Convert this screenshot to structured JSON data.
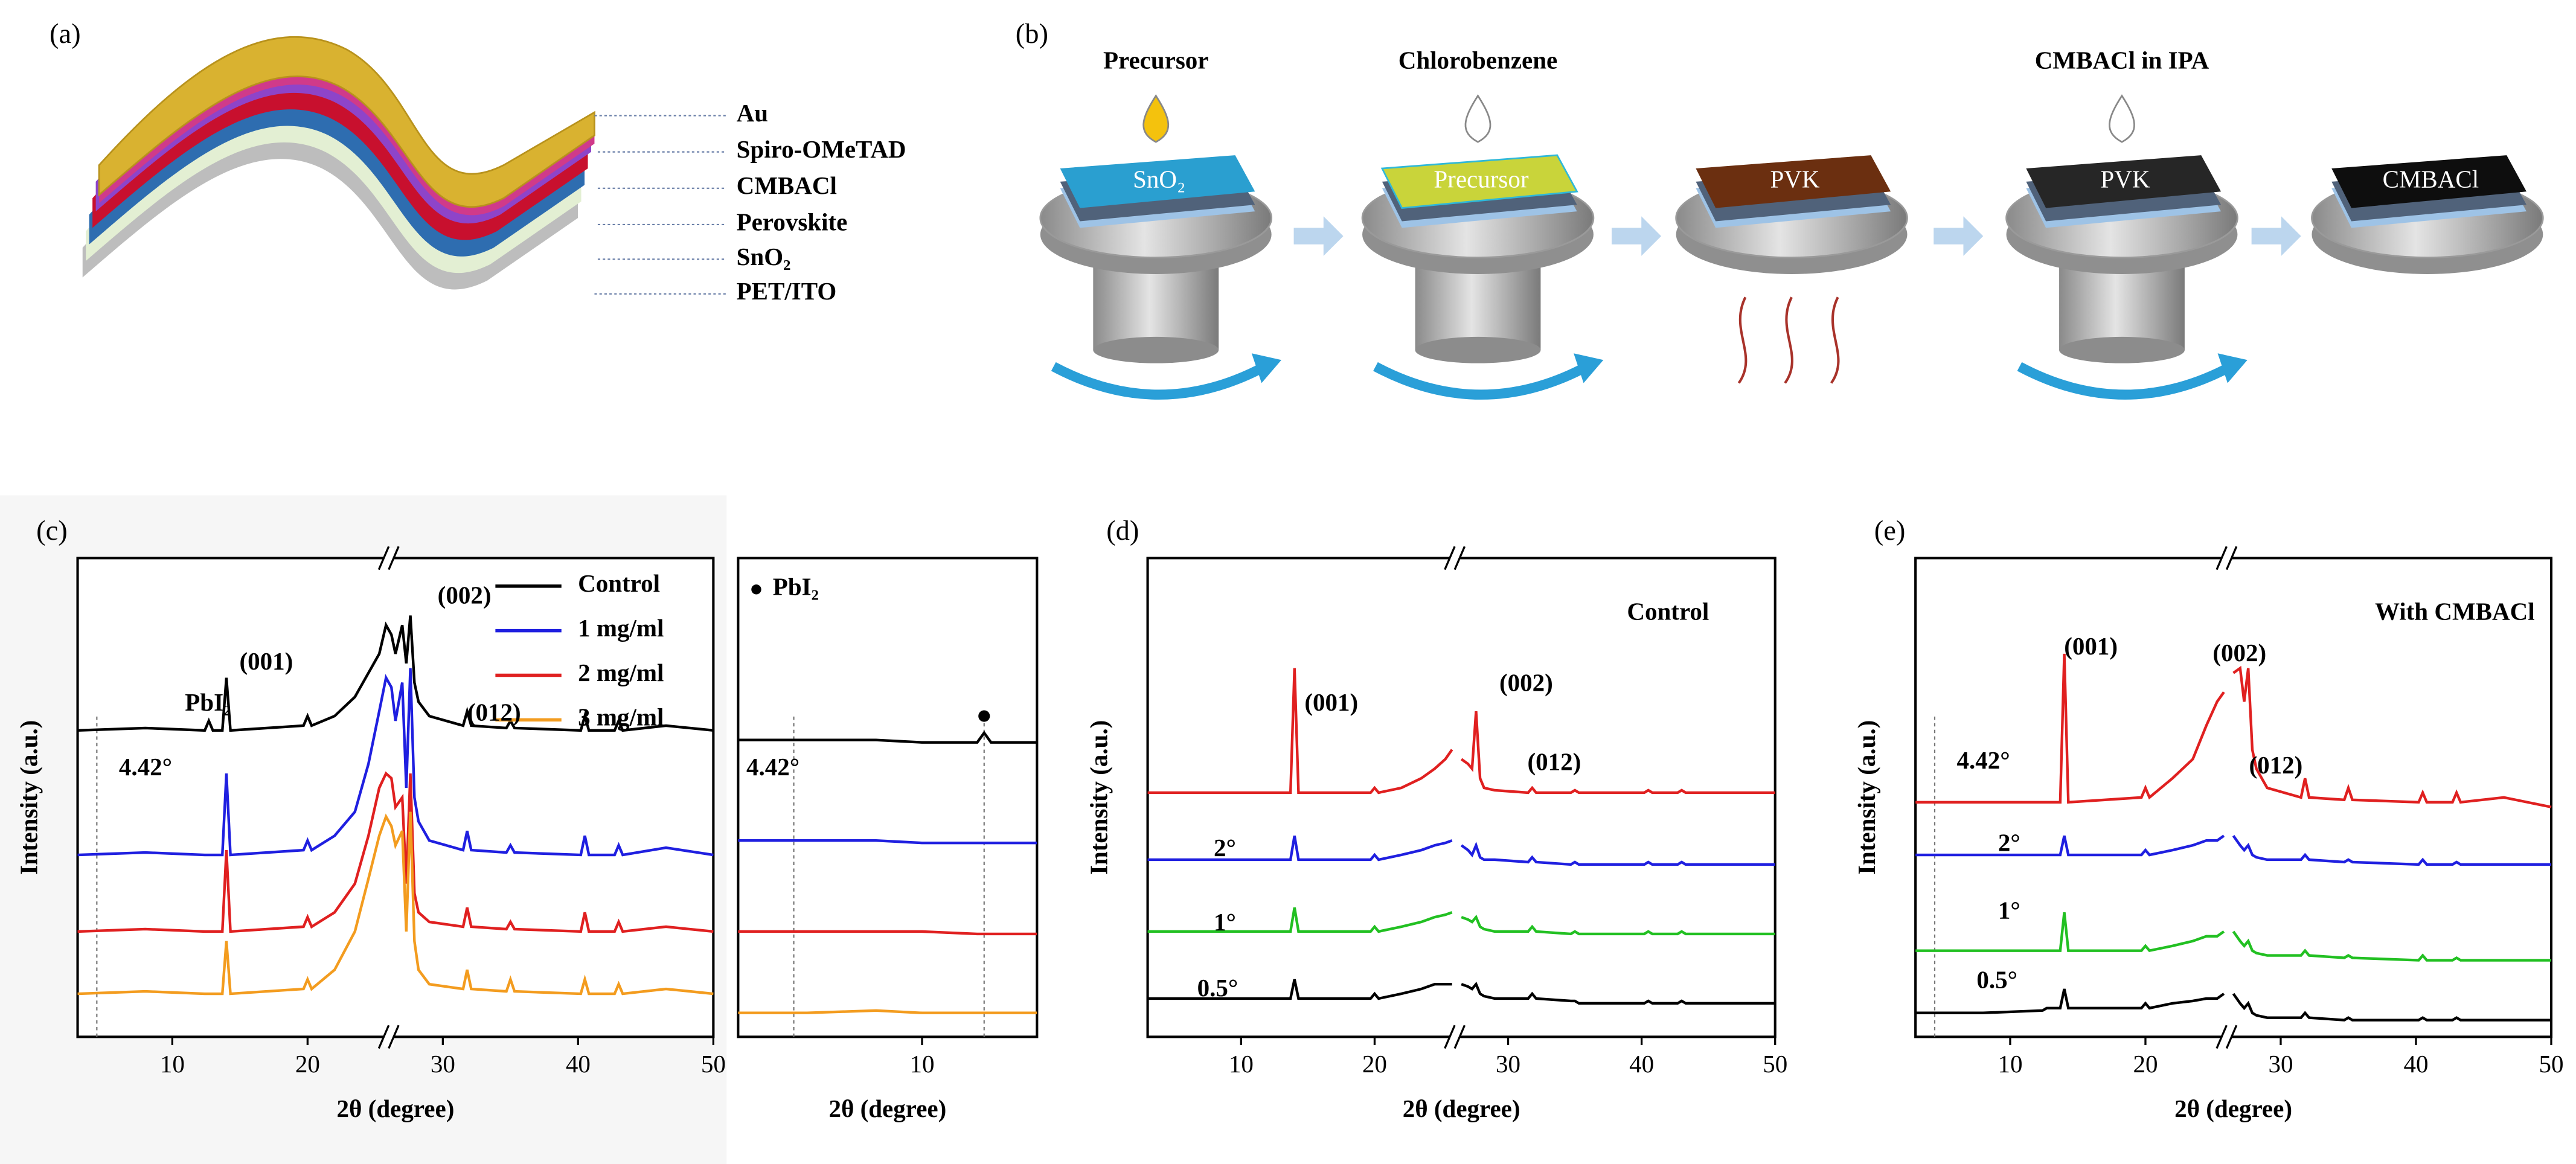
{
  "figure": {
    "a": {
      "label": "(a)",
      "layers": [
        "Au",
        "Spiro-OMeTAD",
        "CMBACl",
        "Perovskite",
        "SnO₂",
        "PET/ITO"
      ]
    },
    "b": {
      "label": "(b)",
      "drops": [
        "Precursor",
        "Chlorobenzene",
        "CMBACl in IPA"
      ],
      "films": [
        "SnO₂",
        "Precursor",
        "PVK",
        "PVK",
        "CMBACl"
      ]
    }
  },
  "chart_data": [
    {
      "type": "line",
      "panel_label": "(c)",
      "xlabel": "2θ (degree)",
      "ylabel": "Intensity (a.u.)",
      "xlim": [
        3,
        50
      ],
      "xticks": [
        10,
        20,
        30,
        40,
        50
      ],
      "ylim": [
        0,
        100
      ],
      "axis_break": 26,
      "legend": "upper right",
      "vlines": [
        4.42
      ],
      "annotations": [
        "(001)",
        "PbI₂",
        "(002)",
        "(012)",
        "4.42°"
      ],
      "x": [
        3,
        8,
        12.4,
        12.7,
        13,
        13.7,
        14,
        14.3,
        19.7,
        20,
        20.3,
        22,
        23.5,
        24.5,
        25.3,
        25.8,
        26.2,
        26.5,
        27,
        27.3,
        27.6,
        27.9,
        28.2,
        29,
        31.5,
        31.8,
        32.1,
        34.7,
        35,
        35.3,
        40.2,
        40.5,
        40.8,
        42.7,
        43,
        43.3,
        46.5,
        50
      ],
      "series": [
        {
          "name": "Control",
          "color": "#000000",
          "values": [
            64,
            64.5,
            64,
            66,
            64,
            64,
            75,
            64,
            65,
            67,
            65,
            67,
            71,
            76,
            80,
            86,
            84,
            80,
            86,
            78,
            88,
            74,
            70,
            67,
            65,
            68,
            65,
            64.5,
            66,
            64.5,
            64,
            67,
            64,
            64,
            66,
            64,
            65,
            64
          ]
        },
        {
          "name": "1 mg/ml",
          "color": "#1f1fe0",
          "values": [
            38,
            38.5,
            38,
            38,
            38,
            38,
            55,
            38,
            39,
            41,
            39,
            42,
            47,
            57,
            68,
            75,
            73,
            66,
            74,
            52,
            77,
            50,
            45,
            41,
            39,
            43,
            39,
            38.5,
            40,
            38.5,
            38,
            42,
            38,
            38,
            40,
            38,
            39.5,
            38
          ]
        },
        {
          "name": "2 mg/ml",
          "color": "#e02020",
          "values": [
            22,
            22.5,
            22,
            22,
            22,
            22,
            39,
            22,
            23,
            25,
            23,
            26,
            32,
            42,
            52,
            55,
            54,
            48,
            50,
            32,
            55,
            30,
            26,
            24,
            23,
            27,
            23,
            22.5,
            24,
            22.5,
            22,
            26,
            22,
            22,
            24,
            22,
            23,
            22
          ]
        },
        {
          "name": "3 mg/ml",
          "color": "#f39c1f",
          "values": [
            9,
            9.5,
            9,
            9,
            9,
            9,
            20,
            9,
            10,
            12,
            10,
            14,
            22,
            33,
            42,
            46,
            44,
            40,
            43,
            22,
            47,
            20,
            14,
            11,
            10,
            14,
            10,
            9.5,
            12,
            9.5,
            9,
            12,
            9,
            9,
            11,
            9,
            10,
            9
          ]
        }
      ]
    },
    {
      "type": "line",
      "xlabel": "2θ (degree)",
      "xlim": [
        2,
        15
      ],
      "xticks": [
        10
      ],
      "ylim": [
        0,
        100
      ],
      "vlines": [
        4.42,
        12.7
      ],
      "annotations": [
        "PbI₂",
        "4.42°"
      ],
      "points": {
        "x": [
          12.7
        ],
        "values": [
          67
        ]
      },
      "x": [
        2,
        5,
        8,
        10,
        12.4,
        12.7,
        13,
        15
      ],
      "series": [
        {
          "color": "#000000",
          "values": [
            62,
            62,
            62,
            61.5,
            61.5,
            63.5,
            61.5,
            61.5
          ]
        },
        {
          "color": "#1f1fe0",
          "values": [
            41,
            41,
            41,
            40.5,
            40.5,
            40.5,
            40.5,
            40.5
          ]
        },
        {
          "color": "#e02020",
          "values": [
            22,
            22,
            22,
            22,
            21.5,
            21.5,
            21.5,
            21.5
          ]
        },
        {
          "color": "#f39c1f",
          "values": [
            5,
            5,
            5.5,
            5,
            5,
            5,
            5,
            5
          ]
        }
      ]
    },
    {
      "type": "line",
      "panel_label": "(d)",
      "xlabel": "2θ (degree)",
      "ylabel": "Intensity (a.u.)",
      "xlim": [
        3,
        50
      ],
      "xticks": [
        10,
        20,
        30,
        40,
        50
      ],
      "ylim": [
        0,
        100
      ],
      "axis_break": 26,
      "annotations": [
        "Control",
        "(001)",
        "(002)",
        "(012)"
      ],
      "x": [
        3,
        8,
        12.4,
        12.7,
        13,
        13.7,
        14,
        14.3,
        19.7,
        20,
        20.3,
        22,
        23.5,
        24.5,
        25.3,
        25.8,
        26.2,
        26.5,
        27,
        27.3,
        27.6,
        27.9,
        28.2,
        29,
        31.5,
        31.8,
        32.1,
        34.7,
        35,
        35.3,
        40.2,
        40.5,
        40.8,
        42.7,
        43,
        43.3,
        46.5,
        50
      ],
      "series": [
        {
          "color": "#e02020",
          "values": [
            51,
            51,
            51,
            51,
            51,
            51,
            77,
            51,
            51,
            52,
            51,
            52,
            54,
            56,
            58,
            60,
            null,
            58,
            57,
            56,
            68,
            54,
            52,
            51.5,
            51,
            52,
            51,
            51,
            51.5,
            51,
            51,
            51.5,
            51,
            51,
            51.5,
            51,
            51,
            51
          ]
        },
        {
          "name": "2°",
          "color": "#1f1fe0",
          "values": [
            37,
            37,
            37,
            37,
            37,
            37,
            42,
            37,
            37,
            38,
            37,
            38,
            39,
            40,
            40.5,
            41,
            null,
            40,
            39,
            38,
            40,
            37.5,
            37,
            37,
            36.5,
            37.5,
            36.5,
            36,
            36.5,
            36,
            36,
            36.5,
            36,
            36,
            36.5,
            36,
            36,
            36
          ]
        },
        {
          "name": "1°",
          "color": "#22c022",
          "values": [
            22,
            22,
            22,
            22,
            22,
            22,
            27,
            22,
            22,
            23,
            22,
            23,
            24,
            25,
            25.5,
            26,
            null,
            25,
            24.5,
            24,
            25,
            23,
            22.5,
            22,
            22,
            23,
            22,
            21.5,
            22,
            21.5,
            21.5,
            22,
            21.5,
            21.5,
            22,
            21.5,
            21.5,
            21.5
          ]
        },
        {
          "name": "0.5°",
          "color": "#000000",
          "values": [
            8,
            8,
            8,
            8,
            8,
            8,
            12,
            8,
            8,
            9,
            8,
            9,
            10,
            11,
            11,
            11,
            null,
            11,
            10.5,
            10,
            11,
            9,
            8.5,
            8,
            8,
            9,
            8,
            7.5,
            7.5,
            7,
            7,
            7.5,
            7,
            7,
            7.5,
            7,
            7,
            7
          ]
        }
      ]
    },
    {
      "type": "line",
      "panel_label": "(e)",
      "xlabel": "2θ (degree)",
      "ylabel": "Intensity (a.u.)",
      "xlim": [
        3,
        50
      ],
      "xticks": [
        10,
        20,
        30,
        40,
        50
      ],
      "ylim": [
        0,
        100
      ],
      "axis_break": 26,
      "vlines": [
        4.42
      ],
      "annotations": [
        "With CMBACl",
        "(001)",
        "(002)",
        "(012)",
        "4.42°"
      ],
      "x": [
        3,
        8,
        12.4,
        12.7,
        13,
        13.7,
        14,
        14.3,
        19.7,
        20,
        20.3,
        22,
        23.5,
        24.5,
        25.3,
        25.8,
        26.2,
        26.5,
        27,
        27.3,
        27.6,
        27.9,
        28.2,
        29,
        31.5,
        31.8,
        32.1,
        34.7,
        35,
        35.3,
        40.2,
        40.5,
        40.8,
        42.7,
        43,
        43.3,
        46.5,
        50
      ],
      "series": [
        {
          "color": "#e02020",
          "values": [
            49,
            49,
            49,
            49,
            49,
            49,
            80,
            49,
            50,
            52,
            50,
            54,
            58,
            65,
            70,
            72,
            null,
            76,
            77,
            70,
            77,
            60,
            56,
            52,
            50,
            54,
            50,
            49.5,
            52,
            49.5,
            49,
            51,
            49,
            49,
            51,
            49,
            50,
            48
          ]
        },
        {
          "name": "2°",
          "color": "#1f1fe0",
          "values": [
            38,
            38,
            38,
            38,
            38,
            38,
            42,
            38,
            38,
            39,
            38,
            39,
            40,
            41,
            41,
            42,
            null,
            42,
            40,
            39,
            40,
            38,
            37.5,
            37,
            37,
            38,
            37,
            36.5,
            37,
            36.5,
            36,
            37,
            36,
            36,
            36.5,
            36,
            36,
            36
          ]
        },
        {
          "name": "1°",
          "color": "#22c022",
          "values": [
            18,
            18,
            18,
            18,
            18,
            18,
            26,
            18,
            18,
            19,
            18,
            19,
            20,
            21,
            21,
            22,
            null,
            22,
            20,
            19,
            20,
            18,
            17.5,
            17,
            17,
            18,
            17,
            16.5,
            17,
            16.5,
            16,
            17,
            16,
            16,
            16.5,
            16,
            16,
            16
          ]
        },
        {
          "name": "0.5°",
          "color": "#000000",
          "values": [
            5,
            5,
            5.5,
            6,
            6,
            6,
            10,
            6,
            6,
            7,
            6,
            7,
            7.5,
            8,
            8,
            9,
            null,
            9,
            7,
            6,
            7,
            5,
            4.5,
            4,
            4,
            5,
            4,
            3.5,
            4,
            3.5,
            3.5,
            4,
            3.5,
            3.5,
            4,
            3.5,
            3.5,
            3.5
          ]
        }
      ]
    }
  ]
}
